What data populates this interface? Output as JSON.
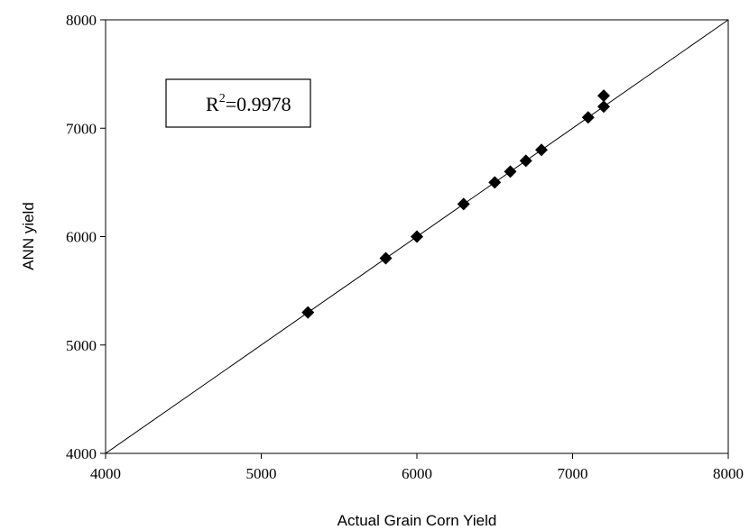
{
  "chart_data": {
    "type": "scatter",
    "xlabel": "Actual Grain Corn Yield",
    "ylabel": "ANN yield",
    "xlim": [
      4000,
      8000
    ],
    "ylim": [
      4000,
      8000
    ],
    "x_ticks": [
      "4000",
      "5000",
      "6000",
      "7000",
      "8000"
    ],
    "y_ticks": [
      "4000",
      "5000",
      "6000",
      "7000",
      "8000"
    ],
    "grid": false,
    "legend": "none",
    "reference_line": {
      "type": "y=x",
      "from": [
        4000,
        4000
      ],
      "to": [
        8000,
        8000
      ]
    },
    "annotation": {
      "base": "R",
      "superscript": "2",
      "value": "=0.9978"
    },
    "marker": "diamond",
    "marker_color": "#000000",
    "points": [
      {
        "x": 5300,
        "y": 5300
      },
      {
        "x": 5800,
        "y": 5800
      },
      {
        "x": 6000,
        "y": 6000
      },
      {
        "x": 6300,
        "y": 6300
      },
      {
        "x": 6500,
        "y": 6500
      },
      {
        "x": 6600,
        "y": 6600
      },
      {
        "x": 6700,
        "y": 6700
      },
      {
        "x": 6800,
        "y": 6800
      },
      {
        "x": 7100,
        "y": 7100
      },
      {
        "x": 7200,
        "y": 7200
      },
      {
        "x": 7200,
        "y": 7300
      }
    ]
  }
}
